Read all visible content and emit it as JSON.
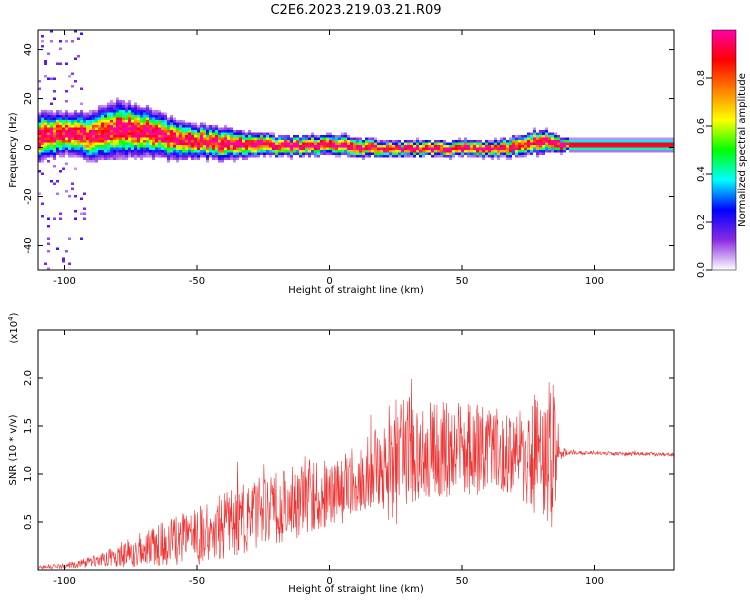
{
  "title": "C2E6.2023.219.03.21.R09",
  "chart_data": [
    {
      "type": "heatmap",
      "xlabel": "Height of straight line (km)",
      "ylabel": "Frequency (Hz)",
      "xlim": [
        -110,
        130
      ],
      "ylim": [
        -50,
        48
      ],
      "xticks": [
        -100,
        -50,
        0,
        50,
        100
      ],
      "yticks": [
        -40,
        -20,
        0,
        20,
        40
      ],
      "colorbar": {
        "label": "Normalized spectral amplitude",
        "range": [
          0,
          1
        ],
        "ticks": [
          0.0,
          0.2,
          0.4,
          0.6,
          0.8
        ],
        "colormap": [
          "#ffffff",
          "#8a2be2",
          "#0000ff",
          "#00ffff",
          "#00ff00",
          "#ffff00",
          "#ff8000",
          "#ff0000",
          "#ff00aa"
        ]
      },
      "ridge": {
        "x": [
          -110,
          -100,
          -90,
          -80,
          -70,
          -60,
          -50,
          -40,
          -30,
          -20,
          -10,
          0,
          10,
          20,
          30,
          40,
          50,
          60,
          70,
          80,
          90,
          100,
          110,
          120,
          130
        ],
        "freq": [
          5,
          6,
          5,
          8,
          7,
          4,
          3,
          2,
          2,
          1,
          1,
          2,
          1,
          0,
          0,
          0,
          0,
          0,
          1,
          3,
          1.5,
          1.5,
          1.5,
          1.5,
          1.5
        ],
        "spread": [
          6,
          5,
          6,
          7,
          6,
          5,
          4,
          4,
          3,
          2.5,
          2.5,
          2.5,
          2.5,
          2,
          2,
          2,
          2,
          2,
          2.5,
          3,
          1.5,
          1.5,
          1.5,
          1.5,
          1.5
        ]
      }
    },
    {
      "type": "line",
      "xlabel": "Height of straight line (km)",
      "ylabel": "SNR (10 * v/v)",
      "yexponent": "(x10",
      "yexponent_power": "4",
      "yexponent_close": ")",
      "xlim": [
        -110,
        130
      ],
      "ylim": [
        0,
        2.5
      ],
      "xticks": [
        -100,
        -50,
        0,
        50,
        100
      ],
      "yticks": [
        0.5,
        1.0,
        1.5,
        2.0
      ],
      "color": "#ee3333",
      "envelope": {
        "x": [
          -110,
          -100,
          -90,
          -80,
          -70,
          -60,
          -50,
          -40,
          -30,
          -20,
          -10,
          0,
          10,
          20,
          25,
          30,
          40,
          50,
          60,
          70,
          80,
          85,
          87,
          90,
          100,
          110,
          120,
          130
        ],
        "mean": [
          0.03,
          0.04,
          0.08,
          0.15,
          0.22,
          0.3,
          0.35,
          0.45,
          0.55,
          0.65,
          0.75,
          0.8,
          0.95,
          1.1,
          1.15,
          1.25,
          1.25,
          1.25,
          1.25,
          1.2,
          1.2,
          1.2,
          1.22,
          1.22,
          1.22,
          1.21,
          1.21,
          1.2
        ],
        "amp": [
          0.02,
          0.03,
          0.06,
          0.12,
          0.2,
          0.25,
          0.3,
          0.35,
          0.4,
          0.4,
          0.4,
          0.35,
          0.35,
          0.45,
          0.75,
          0.6,
          0.5,
          0.5,
          0.45,
          0.45,
          0.75,
          0.8,
          0.1,
          0.02,
          0.02,
          0.02,
          0.02,
          0.02
        ]
      }
    }
  ]
}
